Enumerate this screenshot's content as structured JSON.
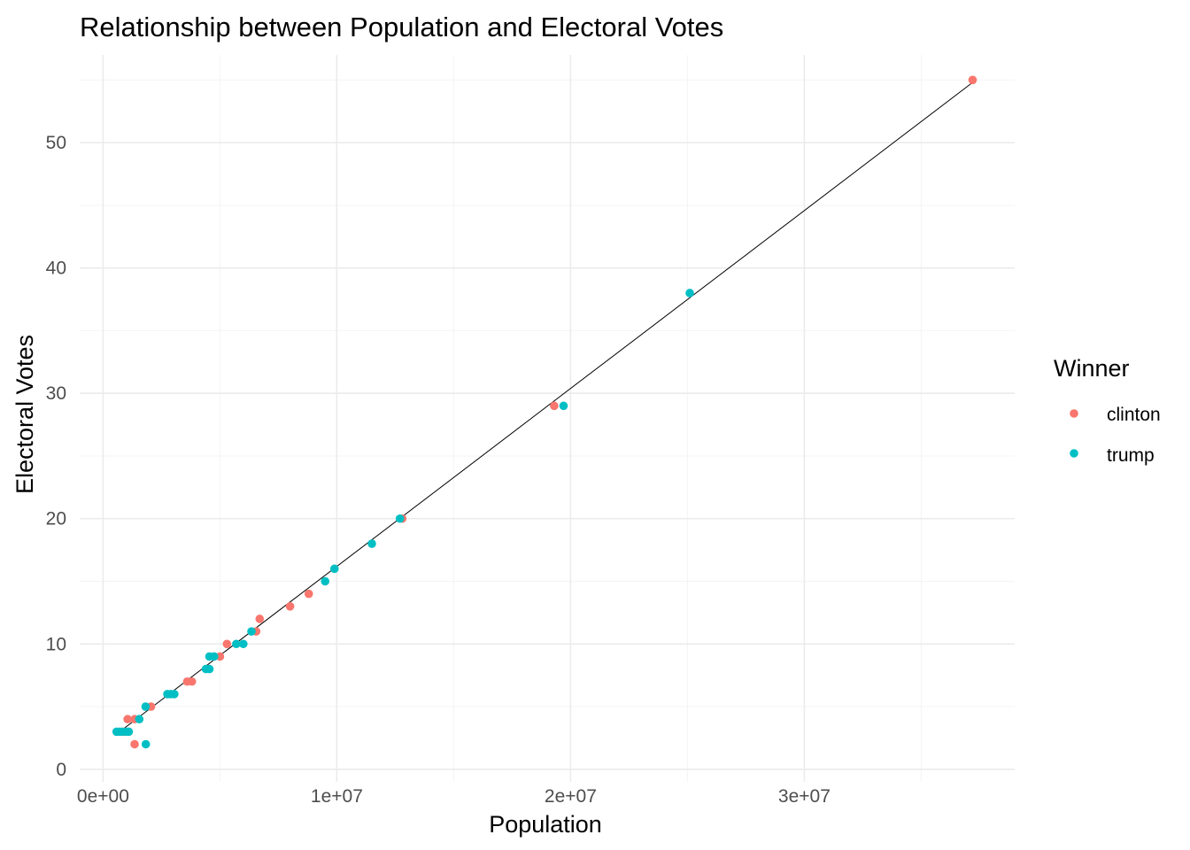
{
  "chart_data": {
    "type": "scatter",
    "title": "Relationship between Population and Electoral Votes",
    "xlabel": "Population",
    "ylabel": "Electoral Votes",
    "xlim": [
      -1000000,
      39000000
    ],
    "ylim": [
      -1,
      57
    ],
    "x_ticks": [
      0,
      10000000,
      20000000,
      30000000
    ],
    "x_tick_labels": [
      "0e+00",
      "1e+07",
      "2e+07",
      "3e+07"
    ],
    "y_ticks": [
      0,
      10,
      20,
      30,
      40,
      50
    ],
    "y_tick_labels": [
      "0",
      "10",
      "20",
      "30",
      "40",
      "50"
    ],
    "grid": true,
    "legend": {
      "title": "Winner",
      "position": "right"
    },
    "series": [
      {
        "name": "clinton",
        "color": "#F8766D",
        "points": [
          [
            900000,
            3
          ],
          [
            1050000,
            4
          ],
          [
            1350000,
            4
          ],
          [
            1350000,
            2
          ],
          [
            2050000,
            5
          ],
          [
            3600000,
            7
          ],
          [
            3800000,
            7
          ],
          [
            5000000,
            9
          ],
          [
            5300000,
            10
          ],
          [
            6550000,
            11
          ],
          [
            6700000,
            12
          ],
          [
            8000000,
            13
          ],
          [
            8800000,
            14
          ],
          [
            12800000,
            20
          ],
          [
            19300000,
            29
          ],
          [
            37200000,
            55
          ]
        ]
      },
      {
        "name": "trump",
        "color": "#00BFC4",
        "points": [
          [
            580000,
            3
          ],
          [
            700000,
            3
          ],
          [
            820000,
            3
          ],
          [
            1000000,
            3
          ],
          [
            1100000,
            3
          ],
          [
            1550000,
            4
          ],
          [
            1820000,
            5
          ],
          [
            1830000,
            2
          ],
          [
            2750000,
            6
          ],
          [
            2900000,
            6
          ],
          [
            3050000,
            6
          ],
          [
            4400000,
            8
          ],
          [
            4550000,
            8
          ],
          [
            4550000,
            9
          ],
          [
            4750000,
            9
          ],
          [
            5700000,
            10
          ],
          [
            6000000,
            10
          ],
          [
            6350000,
            11
          ],
          [
            9500000,
            15
          ],
          [
            9900000,
            16
          ],
          [
            11500000,
            18
          ],
          [
            12700000,
            20
          ],
          [
            19700000,
            29
          ],
          [
            25100000,
            38
          ]
        ]
      }
    ],
    "trend_line": {
      "x": [
        500000,
        37200000
      ],
      "y": [
        2.7,
        54.8
      ],
      "color": "#000000"
    }
  }
}
